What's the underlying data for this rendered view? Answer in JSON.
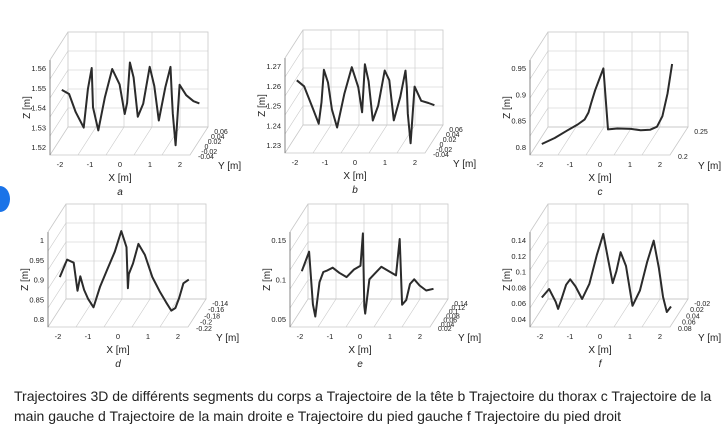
{
  "caption": "Trajectoires 3D de différents segments du corps a Trajectoire de la tête b Trajectoire du thorax c Trajectoire de la main gauche d Trajectoire de la main droite e Trajectoire du pied gauche f Trajectoire du pied droit",
  "colors": {
    "line": "#2b2b2b",
    "grid": "#c8c8c8",
    "accent": "#1a73e8"
  },
  "chart_data": [
    {
      "type": "line",
      "panel": "a",
      "xlabel": "X [m]",
      "ylabel": "Y [m]",
      "zlabel": "Z [m]",
      "x_ticks": [
        "-2",
        "-1",
        "0",
        "1",
        "2"
      ],
      "y_ticks": [
        "0.06",
        "0.04",
        "0.02",
        "0",
        "-0.02",
        "-0.04"
      ],
      "z_ticks": [
        "1.56",
        "1.55",
        "1.54",
        "1.53",
        "1.52"
      ],
      "xlim": [
        -2.4,
        2.6
      ],
      "zlim": [
        1.515,
        1.565
      ],
      "series": [
        {
          "x": [
            -2.3,
            -2.1,
            -1.9,
            -1.6,
            -1.4,
            -1.2,
            -1.1,
            -0.9,
            -0.7,
            -0.5,
            -0.3,
            -0.15,
            -0.05,
            0.1,
            0.3,
            0.5,
            0.7,
            0.9,
            1.0,
            1.1,
            1.3,
            1.5,
            1.6,
            1.7,
            1.85,
            2.0,
            2.2,
            2.4,
            2.55
          ],
          "z": [
            1.548,
            1.545,
            1.535,
            1.527,
            1.548,
            1.56,
            1.54,
            1.528,
            1.545,
            1.559,
            1.55,
            1.534,
            1.54,
            1.562,
            1.555,
            1.535,
            1.542,
            1.561,
            1.55,
            1.531,
            1.548,
            1.559,
            1.545,
            1.536,
            1.52,
            1.552,
            1.546,
            1.542,
            1.54
          ]
        }
      ]
    },
    {
      "type": "line",
      "panel": "b",
      "xlabel": "X [m]",
      "ylabel": "Y [m]",
      "zlabel": "Z [m]",
      "x_ticks": [
        "-2",
        "-1",
        "0",
        "1",
        "2"
      ],
      "y_ticks": [
        "0.06",
        "0.04",
        "0.02",
        "0",
        "-0.02",
        "-0.04"
      ],
      "z_ticks": [
        "1.27",
        "1.26",
        "1.25",
        "1.24",
        "1.23"
      ],
      "xlim": [
        -2.4,
        2.6
      ],
      "zlim": [
        1.225,
        1.275
      ],
      "series": [
        {
          "x": [
            -2.3,
            -2.1,
            -1.8,
            -1.6,
            -1.45,
            -1.3,
            -1.1,
            -0.95,
            -0.8,
            -0.6,
            -0.4,
            -0.2,
            -0.05,
            0.1,
            0.3,
            0.5,
            0.7,
            0.9,
            1.0,
            1.1,
            1.3,
            1.5,
            1.6,
            1.7,
            1.85,
            2.0,
            2.2,
            2.4,
            2.55
          ],
          "z": [
            1.262,
            1.258,
            1.245,
            1.238,
            1.25,
            1.268,
            1.262,
            1.248,
            1.238,
            1.255,
            1.268,
            1.257,
            1.244,
            1.27,
            1.262,
            1.242,
            1.25,
            1.268,
            1.262,
            1.24,
            1.252,
            1.266,
            1.258,
            1.245,
            1.23,
            1.26,
            1.252,
            1.25,
            1.248
          ]
        }
      ]
    },
    {
      "type": "line",
      "panel": "c",
      "xlabel": "X [m]",
      "ylabel": "Y [m]",
      "zlabel": "Z [m]",
      "x_ticks": [
        "-2",
        "-1",
        "0",
        "1",
        "2"
      ],
      "y_ticks": [
        "0.25",
        "0.2"
      ],
      "z_ticks": [
        "0.95",
        "0.9",
        "0.85",
        "0.8"
      ],
      "xlim": [
        -2.4,
        2.6
      ],
      "zlim": [
        0.78,
        1.0
      ],
      "series": [
        {
          "x": [
            -2.3,
            -1.9,
            -1.5,
            -1.1,
            -0.8,
            -0.6,
            -0.45,
            -0.3,
            -0.15,
            -0.1,
            0.0,
            0.3,
            0.8,
            1.2,
            1.6,
            1.9,
            2.1,
            2.25,
            2.35
          ],
          "z": [
            0.8,
            0.81,
            0.825,
            0.84,
            0.855,
            0.875,
            0.9,
            0.93,
            0.96,
            0.975,
            0.83,
            0.83,
            0.83,
            0.83,
            0.835,
            0.845,
            0.87,
            0.92,
            0.985
          ]
        }
      ]
    },
    {
      "type": "line",
      "panel": "d",
      "xlabel": "X [m]",
      "ylabel": "Y [m]",
      "zlabel": "Z [m]",
      "x_ticks": [
        "-2",
        "-1",
        "0",
        "1",
        "2"
      ],
      "y_ticks": [
        "-0.14",
        "-0.16",
        "-0.18",
        "-0.2",
        "-0.22"
      ],
      "z_ticks": [
        "1",
        "0.95",
        "0.9",
        "0.85",
        "0.8"
      ],
      "xlim": [
        -2.4,
        2.6
      ],
      "zlim": [
        0.78,
        1.02
      ],
      "series": [
        {
          "x": [
            -2.3,
            -2.1,
            -1.9,
            -1.75,
            -1.6,
            -1.4,
            -1.2,
            -1.0,
            -0.8,
            -0.6,
            -0.4,
            -0.2,
            0.0,
            0.1,
            0.2,
            0.4,
            0.6,
            0.8,
            1.0,
            1.2,
            1.4,
            1.6,
            1.8,
            2.0,
            2.2,
            2.4
          ],
          "z": [
            0.9,
            0.94,
            0.93,
            0.86,
            0.9,
            0.87,
            0.85,
            0.83,
            0.88,
            0.92,
            0.96,
            1.01,
            0.97,
            0.87,
            0.91,
            0.94,
            0.99,
            0.96,
            0.9,
            0.86,
            0.83,
            0.81,
            0.82,
            0.85,
            0.89,
            0.9
          ]
        }
      ]
    },
    {
      "type": "line",
      "panel": "e",
      "xlabel": "X [m]",
      "ylabel": "Y [m]",
      "zlabel": "Z [m]",
      "x_ticks": [
        "-2",
        "-1",
        "0",
        "1",
        "2"
      ],
      "y_ticks": [
        "0.14",
        "0.12",
        "0.1",
        "0.08",
        "0.06",
        "0.04",
        "0.02"
      ],
      "z_ticks": [
        "0.15",
        "0.1",
        "0.05"
      ],
      "xlim": [
        -2.4,
        2.6
      ],
      "zlim": [
        0.01,
        0.17
      ],
      "series": [
        {
          "x": [
            -2.3,
            -2.1,
            -2.0,
            -1.9,
            -1.7,
            -1.5,
            -1.3,
            -1.1,
            -0.9,
            -0.7,
            -0.5,
            -0.3,
            -0.2,
            -0.1,
            0.0,
            0.2,
            0.4,
            0.6,
            0.8,
            1.0,
            1.1,
            1.2,
            1.4,
            1.6,
            1.8,
            2.0,
            2.2,
            2.4
          ],
          "z": [
            0.1,
            0.13,
            0.04,
            0.02,
            0.08,
            0.1,
            0.105,
            0.11,
            0.1,
            0.09,
            0.1,
            0.105,
            0.16,
            0.04,
            0.03,
            0.09,
            0.1,
            0.11,
            0.1,
            0.09,
            0.15,
            0.04,
            0.05,
            0.08,
            0.09,
            0.08,
            0.07,
            0.07
          ]
        }
      ]
    },
    {
      "type": "line",
      "panel": "f",
      "xlabel": "X [m]",
      "ylabel": "Y [m]",
      "zlabel": "Z [m]",
      "x_ticks": [
        "-2",
        "-1",
        "0",
        "1",
        "2"
      ],
      "y_ticks": [
        "-0.02",
        "0.02",
        "0.04",
        "0.06",
        "0.08"
      ],
      "z_ticks": [
        "0.14",
        "0.12",
        "0.1",
        "0.08",
        "0.06",
        "0.04"
      ],
      "xlim": [
        -2.4,
        2.6
      ],
      "zlim": [
        0.02,
        0.16
      ],
      "series": [
        {
          "x": [
            -2.3,
            -2.1,
            -1.9,
            -1.8,
            -1.6,
            -1.4,
            -1.2,
            -1.0,
            -0.8,
            -0.6,
            -0.4,
            -0.2,
            0.0,
            0.2,
            0.4,
            0.6,
            0.8,
            1.0,
            1.2,
            1.4,
            1.6,
            1.8,
            2.0,
            2.2,
            2.4
          ],
          "z": [
            0.06,
            0.07,
            0.05,
            0.04,
            0.06,
            0.08,
            0.09,
            0.08,
            0.06,
            0.08,
            0.12,
            0.15,
            0.11,
            0.08,
            0.1,
            0.13,
            0.11,
            0.05,
            0.07,
            0.11,
            0.14,
            0.1,
            0.06,
            0.04,
            0.05
          ]
        }
      ]
    }
  ]
}
